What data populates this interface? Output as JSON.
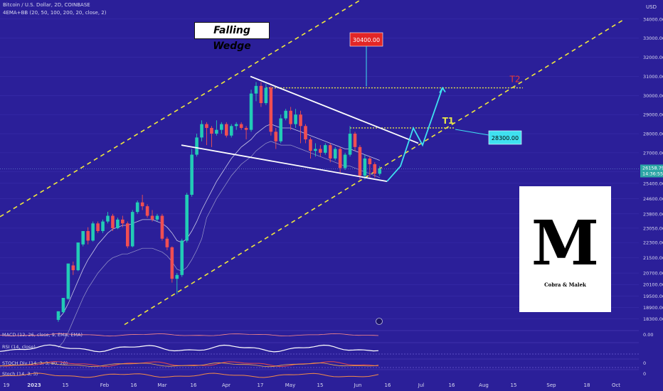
{
  "header": {
    "symbol": "Bitcoin / U.S. Dollar, 2D, COINBASE",
    "indicator": "4EMA+BB (20, 50, 100, 200, 20, close, 2)",
    "currency": "USD"
  },
  "annotation_title": "Falling Wedge",
  "logo_caption": "Cobra & Malek",
  "chart_data": {
    "type": "candlestick",
    "ylim": [
      17800,
      35000
    ],
    "y_ticks": [
      {
        "v": 34000,
        "label": "34000.00"
      },
      {
        "v": 33000,
        "label": "33000.00"
      },
      {
        "v": 32000,
        "label": "32000.00"
      },
      {
        "v": 31000,
        "label": "31000.00"
      },
      {
        "v": 30000,
        "label": "30000.00"
      },
      {
        "v": 29000,
        "label": "29000.00"
      },
      {
        "v": 28000,
        "label": "28000.00"
      },
      {
        "v": 27000,
        "label": "27000.00"
      },
      {
        "v": 26000,
        "label": "26000.00"
      },
      {
        "v": 25400,
        "label": "25400.00"
      },
      {
        "v": 24600,
        "label": "24600.00"
      },
      {
        "v": 23800,
        "label": "23800.00"
      },
      {
        "v": 23050,
        "label": "23050.00"
      },
      {
        "v": 22300,
        "label": "22300.00"
      },
      {
        "v": 21500,
        "label": "21500.00"
      },
      {
        "v": 20700,
        "label": "20700.00"
      },
      {
        "v": 20100,
        "label": "20100.00"
      },
      {
        "v": 19500,
        "label": "19500.00"
      },
      {
        "v": 18900,
        "label": "18900.00"
      },
      {
        "v": 18300,
        "label": "18300.00"
      }
    ],
    "x_ticks": [
      "19",
      "2023",
      "15",
      "Feb",
      "16",
      "Mar",
      "16",
      "Apr",
      "17",
      "May",
      "15",
      "Jun",
      "16",
      "Jul",
      "16",
      "Aug",
      "15",
      "Sep",
      "18",
      "Oct"
    ],
    "last_price": {
      "value": 26158.79,
      "label": "26158.79",
      "countdown": "14:36:55"
    },
    "targets": [
      {
        "name": "T1",
        "value": 28300,
        "label": "28300.00",
        "tag": "T1",
        "color": "#e8e84a"
      },
      {
        "name": "T2",
        "value": 30400,
        "label": "30400.00",
        "tag": "T2",
        "color": "#e83838"
      }
    ],
    "candles": [
      [
        18250,
        18700,
        18150,
        18650
      ],
      [
        18650,
        19400,
        18600,
        19350
      ],
      [
        19350,
        21200,
        19300,
        21100
      ],
      [
        21100,
        20850,
        20600,
        21300
      ],
      [
        20850,
        22300,
        20800,
        22200
      ],
      [
        22200,
        22900,
        22100,
        22900
      ],
      [
        22900,
        22400,
        22200,
        23100
      ],
      [
        22400,
        23300,
        22350,
        23400
      ],
      [
        23300,
        22900,
        22800,
        23400
      ],
      [
        22900,
        23400,
        22800,
        23500
      ],
      [
        23400,
        23700,
        23300,
        23900
      ],
      [
        23700,
        23050,
        22900,
        23800
      ],
      [
        23050,
        23500,
        23000,
        23600
      ],
      [
        23500,
        23300,
        23100,
        23700
      ],
      [
        23300,
        22100,
        22000,
        23400
      ],
      [
        22100,
        23900,
        22050,
        24000
      ],
      [
        23900,
        24400,
        23800,
        24500
      ],
      [
        24400,
        24200,
        24000,
        24800
      ],
      [
        24200,
        23700,
        23600,
        24300
      ],
      [
        23700,
        23500,
        23400,
        24000
      ],
      [
        23500,
        23700,
        23400,
        23800
      ],
      [
        23700,
        22500,
        22400,
        23800
      ],
      [
        22500,
        22050,
        21900,
        22600
      ],
      [
        22050,
        20400,
        20200,
        22100
      ],
      [
        20400,
        20600,
        19600,
        20700
      ],
      [
        20600,
        22400,
        20500,
        22500
      ],
      [
        22400,
        24800,
        22300,
        24900
      ],
      [
        24800,
        26900,
        24700,
        27200
      ],
      [
        26900,
        27800,
        26800,
        28000
      ],
      [
        27800,
        28500,
        27600,
        28700
      ],
      [
        28500,
        28300,
        27400,
        28600
      ],
      [
        28300,
        28000,
        27300,
        28400
      ],
      [
        28000,
        28200,
        27900,
        28700
      ],
      [
        28200,
        28500,
        28000,
        28600
      ],
      [
        28500,
        27900,
        27800,
        28600
      ],
      [
        27900,
        28400,
        27800,
        28500
      ],
      [
        28400,
        28500,
        28200,
        28600
      ],
      [
        28500,
        28300,
        28200,
        28600
      ],
      [
        28300,
        28200,
        27700,
        28400
      ],
      [
        28200,
        30100,
        28100,
        30300
      ],
      [
        30100,
        30500,
        29700,
        30700
      ],
      [
        30500,
        29600,
        29400,
        30700
      ],
      [
        29600,
        30400,
        29500,
        30600
      ],
      [
        30400,
        28100,
        27900,
        30500
      ],
      [
        28100,
        27600,
        27200,
        28300
      ],
      [
        27600,
        28800,
        27500,
        29000
      ],
      [
        28800,
        29200,
        28700,
        29300
      ],
      [
        29200,
        28500,
        28200,
        29400
      ],
      [
        28500,
        29000,
        28300,
        29300
      ],
      [
        29000,
        28400,
        27500,
        29200
      ],
      [
        28400,
        27700,
        27500,
        28500
      ],
      [
        27700,
        27100,
        26700,
        27800
      ],
      [
        27100,
        27200,
        26800,
        27500
      ],
      [
        27200,
        27000,
        26800,
        27400
      ],
      [
        27000,
        27400,
        26900,
        27500
      ],
      [
        27400,
        26700,
        26500,
        27500
      ],
      [
        26700,
        27200,
        26600,
        27300
      ],
      [
        27200,
        26200,
        25900,
        27300
      ],
      [
        26200,
        26900,
        26100,
        27000
      ],
      [
        26900,
        28000,
        26800,
        28400
      ],
      [
        28000,
        27300,
        27100,
        28100
      ],
      [
        27300,
        25800,
        25600,
        27400
      ],
      [
        25800,
        26700,
        25600,
        26900
      ],
      [
        26700,
        26400,
        25700,
        26800
      ],
      [
        26400,
        25900,
        25700,
        26500
      ],
      [
        25900,
        26150,
        25800,
        26300
      ]
    ],
    "lines": {
      "wedge_upper": [
        [
          31000,
          28300
        ]
      ],
      "wedge_lower": [
        [
          27400,
          25500
        ]
      ],
      "channel_upper_dashed": [
        [
          23650,
          30500
        ]
      ],
      "channel_lower_dashed": [
        [
          18000,
          34000
        ]
      ]
    },
    "projection": [
      25500,
      26300,
      28300,
      27400,
      30400
    ],
    "panels": [
      {
        "name": "MACD",
        "label": "MACD (12, 26, close, 9, EMA, EMA)",
        "right_label": "0.00"
      },
      {
        "name": "RSI",
        "label": "RSI (14, close)",
        "right_label": ""
      },
      {
        "name": "STOCH Div",
        "label": "STOCH Div (14, 3, 3, 80, 20)",
        "right_label": "0"
      },
      {
        "name": "Stoch",
        "label": "Stoch (14, 3, 3)",
        "right_label": "0"
      }
    ]
  },
  "colors": {
    "background": "#2b1f99",
    "up": "#22cbb6",
    "down": "#f04e52",
    "wedge": "#ffffff",
    "channel": "#f1e93c",
    "target_line": "#e8e84a",
    "projection": "#3fe0f0",
    "price_tag": "#3fe0f0",
    "t2_tag": "#e32626"
  }
}
